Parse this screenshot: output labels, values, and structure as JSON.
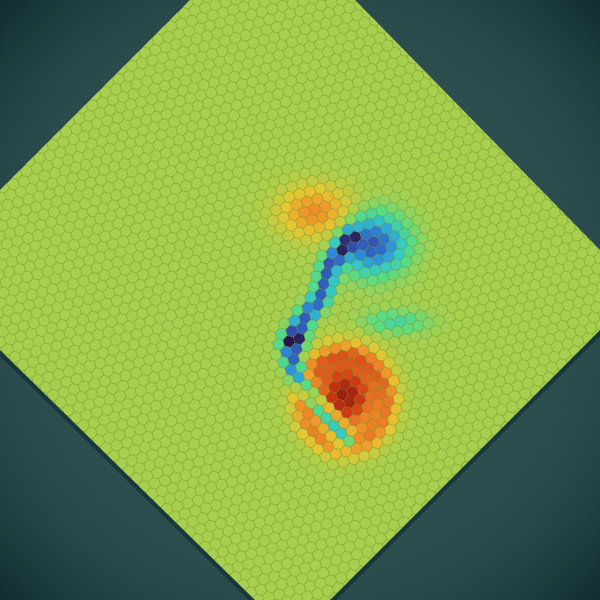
{
  "scene": {
    "kind": "hexagonal-grid-heatmap",
    "background_color": "#2d4d4e",
    "edge_shadow_color": "#0f2a30",
    "field_base_color": "#a8d04e",
    "rotation_degrees": 45,
    "colormap": "turbo",
    "features": [
      {
        "name": "orange-blob",
        "sign": "positive",
        "strength": 0.45
      },
      {
        "name": "blue-blob",
        "sign": "negative",
        "strength": 0.75
      },
      {
        "name": "dark-blue-tail",
        "sign": "negative",
        "strength": 0.95
      },
      {
        "name": "red-blob",
        "sign": "positive",
        "strength": 0.9
      },
      {
        "name": "green-wake",
        "sign": "negative",
        "strength": 0.2
      }
    ]
  }
}
